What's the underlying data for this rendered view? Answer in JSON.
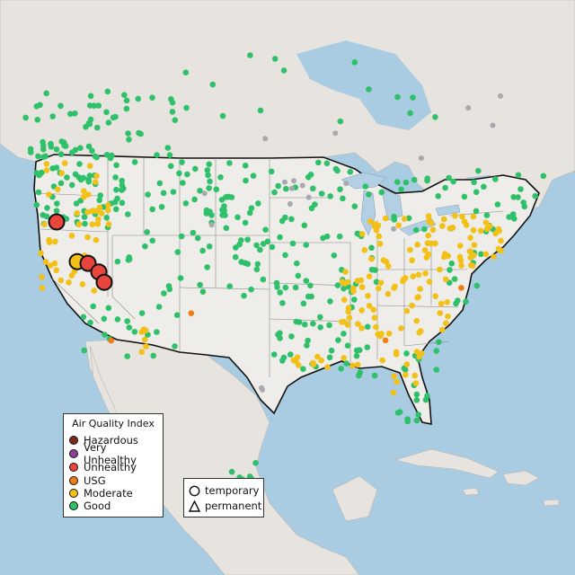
{
  "colors": {
    "ocean": "#a9cce3",
    "land": "#e7e4df",
    "us_land": "#eeede9",
    "border": "#111111",
    "state_line": "#8a8a8a",
    "lake": "#b3cfe3"
  },
  "legend": {
    "title": "Air Quality Index",
    "categories": [
      {
        "label": "Hazardous",
        "color": "#7e2a1e"
      },
      {
        "label": "Very Unhealthy",
        "color": "#8f3f97"
      },
      {
        "label": "Unhealthy",
        "color": "#e8453c"
      },
      {
        "label": "USG",
        "color": "#ef7d18"
      },
      {
        "label": "Moderate",
        "color": "#f2c016"
      },
      {
        "label": "Good",
        "color": "#2fc06a"
      }
    ]
  },
  "shape_legend": {
    "items": [
      {
        "label": "temporary",
        "icon": "circle-outline-icon"
      },
      {
        "label": "permanent",
        "icon": "triangle-outline-icon"
      }
    ]
  },
  "monitors": {
    "unhealthy_large": [
      {
        "lon": -122.9,
        "lat": 41.6
      },
      {
        "lon": -119.4,
        "lat": 36.8
      },
      {
        "lon": -118.2,
        "lat": 35.8
      },
      {
        "lon": -117.6,
        "lat": 34.6
      }
    ],
    "moderate_large": [
      {
        "lon": -120.6,
        "lat": 37.0
      }
    ]
  }
}
